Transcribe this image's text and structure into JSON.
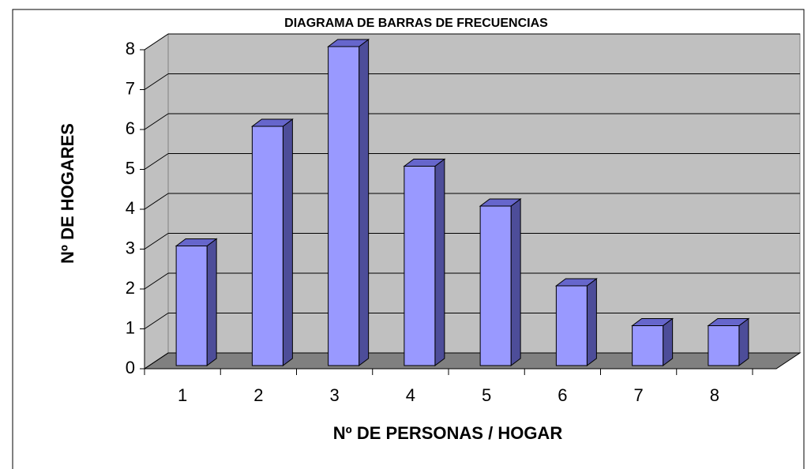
{
  "chart_data": {
    "type": "bar3d",
    "title": "DIAGRAMA DE BARRAS DE FRECUENCIAS",
    "x_label": "Nº DE PERSONAS / HOGAR",
    "y_label": "Nº DE HOGARES",
    "categories": [
      "1",
      "2",
      "3",
      "4",
      "5",
      "6",
      "7",
      "8"
    ],
    "values": [
      3,
      6,
      8,
      5,
      4,
      2,
      1,
      1
    ],
    "color": "#9999ff",
    "ylim": [
      0,
      8
    ],
    "yticks": [
      0,
      1,
      2,
      3,
      4,
      5,
      6,
      7,
      8
    ],
    "grid": true
  }
}
